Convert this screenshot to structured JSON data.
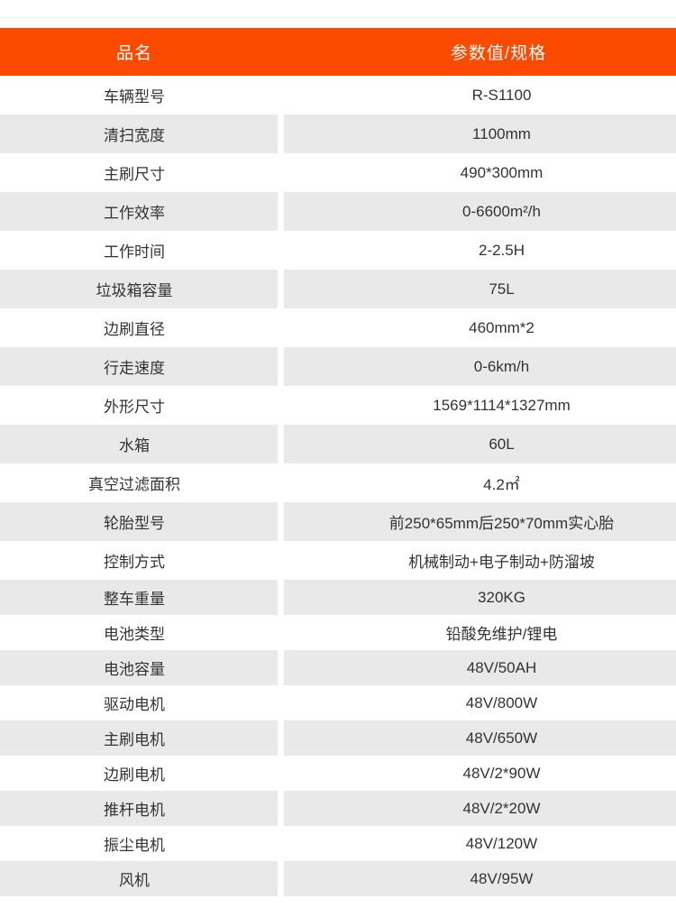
{
  "colors": {
    "accent": "#fc4a00",
    "header_text": "#ffffff",
    "row_bg": "#ffffff",
    "row_alt_bg": "#e9e9e9",
    "text": "#333333",
    "page_bg": "#ffffff"
  },
  "table": {
    "header": {
      "name_col": "品名",
      "value_col": "参数值/规格"
    },
    "rows": [
      {
        "name": "车辆型号",
        "value": "R-S1100"
      },
      {
        "name": "清扫宽度",
        "value": "1100mm"
      },
      {
        "name": "主刷尺寸",
        "value": "490*300mm"
      },
      {
        "name": "工作效率",
        "value": "0-6600m²/h"
      },
      {
        "name": "工作时间",
        "value": "2-2.5H"
      },
      {
        "name": "垃圾箱容量",
        "value": "75L"
      },
      {
        "name": "边刷直径",
        "value": "460mm*2"
      },
      {
        "name": "行走速度",
        "value": "0-6km/h"
      },
      {
        "name": "外形尺寸",
        "value": "1569*1114*1327mm"
      },
      {
        "name": "水箱",
        "value": "60L"
      },
      {
        "name": "真空过滤面积",
        "value": "4.2㎡"
      },
      {
        "name": "轮胎型号",
        "value": "前250*65mm后250*70mm实心胎"
      },
      {
        "name": "控制方式",
        "value": "机械制动+电子制动+防溜坡"
      },
      {
        "name": "整车重量",
        "value": "320KG"
      },
      {
        "name": "电池类型",
        "value": "铅酸免维护/锂电"
      },
      {
        "name": "电池容量",
        "value": "48V/50AH"
      },
      {
        "name": "驱动电机",
        "value": "48V/800W"
      },
      {
        "name": "主刷电机",
        "value": "48V/650W"
      },
      {
        "name": "边刷电机",
        "value": "48V/2*90W"
      },
      {
        "name": "推杆电机",
        "value": "48V/2*20W"
      },
      {
        "name": "振尘电机",
        "value": "48V/120W"
      },
      {
        "name": "风机",
        "value": "48V/95W"
      }
    ]
  }
}
